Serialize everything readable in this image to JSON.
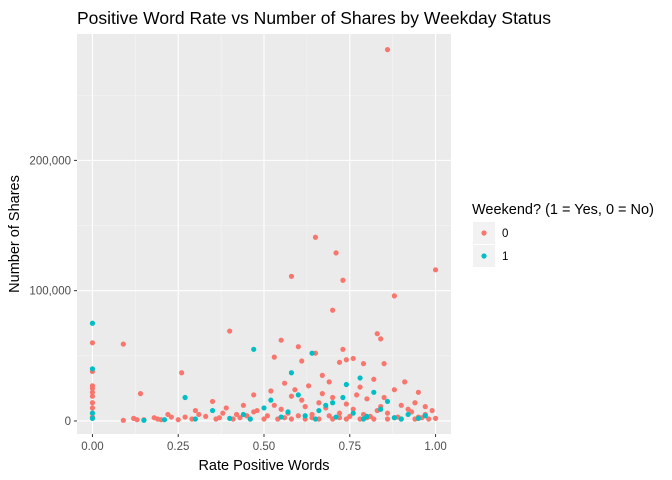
{
  "chart_data": {
    "type": "scatter",
    "title": "Positive Word Rate vs Number of Shares by Weekday Status",
    "xlabel": "Rate Positive Words",
    "ylabel": "Number of Shares",
    "xlim": [
      -0.045,
      1.045
    ],
    "ylim": [
      -10000,
      297000
    ],
    "x_ticks": [
      0.0,
      0.25,
      0.5,
      0.75,
      1.0
    ],
    "x_tick_labels": [
      "0.00",
      "0.25",
      "0.50",
      "0.75",
      "1.00"
    ],
    "y_ticks": [
      0,
      100000,
      200000
    ],
    "y_tick_labels": [
      "0",
      "100,000",
      "200,000"
    ],
    "grid": true,
    "legend": {
      "title": "Weekend? (1 = Yes, 0 = No)",
      "position": "right",
      "entries": [
        {
          "label": "0",
          "color": "#F8766D"
        },
        {
          "label": "1",
          "color": "#00BFC4"
        }
      ]
    },
    "series": [
      {
        "name": "0",
        "color": "#F8766D",
        "points": [
          [
            0.86,
            285000
          ],
          [
            0.65,
            141000
          ],
          [
            0.71,
            129000
          ],
          [
            0.58,
            111000
          ],
          [
            1.0,
            116000
          ],
          [
            0.73,
            108000
          ],
          [
            0.88,
            96000
          ],
          [
            0.7,
            85000
          ],
          [
            0.4,
            69000
          ],
          [
            0.83,
            67000
          ],
          [
            0.84,
            63000
          ],
          [
            0.55,
            62000
          ],
          [
            0.0,
            60000
          ],
          [
            0.09,
            59000
          ],
          [
            0.6,
            57000
          ],
          [
            0.73,
            55000
          ],
          [
            0.65,
            52000
          ],
          [
            0.53,
            49000
          ],
          [
            0.76,
            48000
          ],
          [
            0.74,
            47000
          ],
          [
            0.61,
            46000
          ],
          [
            0.72,
            45000
          ],
          [
            0.85,
            44000
          ],
          [
            0.79,
            44000
          ],
          [
            0.0,
            38000
          ],
          [
            0.26,
            37000
          ],
          [
            0.67,
            35000
          ],
          [
            0.82,
            32000
          ],
          [
            0.91,
            30000
          ],
          [
            0.69,
            30000
          ],
          [
            0.56,
            29000
          ],
          [
            0.0,
            27000
          ],
          [
            0.0,
            25000
          ],
          [
            0.0,
            22000
          ],
          [
            0.0,
            19000
          ],
          [
            0.14,
            21000
          ],
          [
            0.47,
            20000
          ],
          [
            0.63,
            27000
          ],
          [
            0.78,
            26000
          ],
          [
            0.88,
            24000
          ],
          [
            0.95,
            22000
          ],
          [
            0.52,
            23000
          ],
          [
            0.35,
            15000
          ],
          [
            0.58,
            19000
          ],
          [
            0.7,
            18000
          ],
          [
            0.8,
            17000
          ],
          [
            0.44,
            12000
          ],
          [
            0.66,
            14000
          ],
          [
            0.74,
            13000
          ],
          [
            0.9,
            12000
          ],
          [
            0.62,
            11000
          ],
          [
            0.68,
            10000
          ],
          [
            0.76,
            9000
          ],
          [
            0.55,
            9000
          ],
          [
            0.3,
            8000
          ],
          [
            0.48,
            8000
          ],
          [
            0.83,
            8000
          ],
          [
            0.93,
            7000
          ],
          [
            0.38,
            6000
          ],
          [
            0.57,
            6000
          ],
          [
            0.72,
            6000
          ],
          [
            0.86,
            6000
          ],
          [
            0.97,
            5000
          ],
          [
            0.22,
            5000
          ],
          [
            0.42,
            5000
          ],
          [
            0.64,
            5000
          ],
          [
            0.79,
            5000
          ],
          [
            0.12,
            2000
          ],
          [
            0.18,
            2500
          ],
          [
            0.27,
            3000
          ],
          [
            0.33,
            3500
          ],
          [
            0.45,
            4000
          ],
          [
            0.51,
            4000
          ],
          [
            0.6,
            4000
          ],
          [
            0.69,
            4000
          ],
          [
            0.75,
            3500
          ],
          [
            0.81,
            3500
          ],
          [
            0.89,
            3000
          ],
          [
            0.95,
            3000
          ],
          [
            1.0,
            2000
          ],
          [
            0.09,
            500
          ],
          [
            0.15,
            1000
          ],
          [
            0.2,
            1000
          ],
          [
            0.25,
            1000
          ],
          [
            0.29,
            1500
          ],
          [
            0.36,
            1500
          ],
          [
            0.41,
            1500
          ],
          [
            0.46,
            1500
          ],
          [
            0.5,
            1500
          ],
          [
            0.54,
            1500
          ],
          [
            0.58,
            1500
          ],
          [
            0.62,
            1500
          ],
          [
            0.66,
            1500
          ],
          [
            0.7,
            1500
          ],
          [
            0.74,
            1500
          ],
          [
            0.78,
            1500
          ],
          [
            0.82,
            1500
          ],
          [
            0.86,
            1500
          ],
          [
            0.9,
            1500
          ],
          [
            0.94,
            1500
          ],
          [
            0.98,
            1500
          ],
          [
            0.0,
            3000
          ],
          [
            0.0,
            6000
          ],
          [
            0.0,
            10000
          ],
          [
            0.0,
            14000
          ],
          [
            0.53,
            12000
          ],
          [
            0.61,
            16000
          ],
          [
            0.67,
            21000
          ],
          [
            0.77,
            20000
          ],
          [
            0.84,
            11000
          ],
          [
            0.92,
            9000
          ],
          [
            0.39,
            10000
          ],
          [
            0.47,
            7000
          ],
          [
            0.31,
            5000
          ],
          [
            0.23,
            3000
          ],
          [
            0.56,
            2500
          ],
          [
            0.64,
            2500
          ],
          [
            0.72,
            2500
          ],
          [
            0.8,
            2500
          ],
          [
            0.88,
            2500
          ],
          [
            0.96,
            2500
          ],
          [
            0.43,
            2500
          ],
          [
            0.37,
            2500
          ],
          [
            0.19,
            1500
          ],
          [
            0.13,
            1000
          ],
          [
            0.99,
            8000
          ],
          [
            0.97,
            11000
          ],
          [
            0.94,
            14000
          ],
          [
            0.85,
            18000
          ],
          [
            0.59,
            24000
          ]
        ]
      },
      {
        "name": "1",
        "color": "#00BFC4",
        "points": [
          [
            0.0,
            75000
          ],
          [
            0.47,
            55000
          ],
          [
            0.64,
            52000
          ],
          [
            0.0,
            40000
          ],
          [
            0.78,
            33000
          ],
          [
            0.27,
            18000
          ],
          [
            0.58,
            37000
          ],
          [
            0.74,
            28000
          ],
          [
            0.82,
            22000
          ],
          [
            0.86,
            15000
          ],
          [
            0.6,
            20000
          ],
          [
            0.7,
            14000
          ],
          [
            0.5,
            10000
          ],
          [
            0.0,
            6000
          ],
          [
            0.0,
            2000
          ],
          [
            0.35,
            8000
          ],
          [
            0.44,
            5000
          ],
          [
            0.66,
            8000
          ],
          [
            0.76,
            6000
          ],
          [
            0.92,
            5000
          ],
          [
            0.55,
            3000
          ],
          [
            0.62,
            4000
          ],
          [
            0.71,
            3000
          ],
          [
            0.8,
            3500
          ],
          [
            0.88,
            2500
          ],
          [
            0.95,
            2000
          ],
          [
            0.4,
            2000
          ],
          [
            0.3,
            1500
          ],
          [
            0.21,
            1000
          ],
          [
            0.68,
            12000
          ],
          [
            0.73,
            18000
          ],
          [
            0.84,
            9000
          ],
          [
            0.52,
            16000
          ],
          [
            0.57,
            7000
          ],
          [
            0.97,
            4000
          ],
          [
            0.46,
            1500
          ],
          [
            0.65,
            1500
          ],
          [
            0.79,
            1500
          ],
          [
            0.9,
            1500
          ],
          [
            0.15,
            500
          ]
        ]
      }
    ]
  }
}
